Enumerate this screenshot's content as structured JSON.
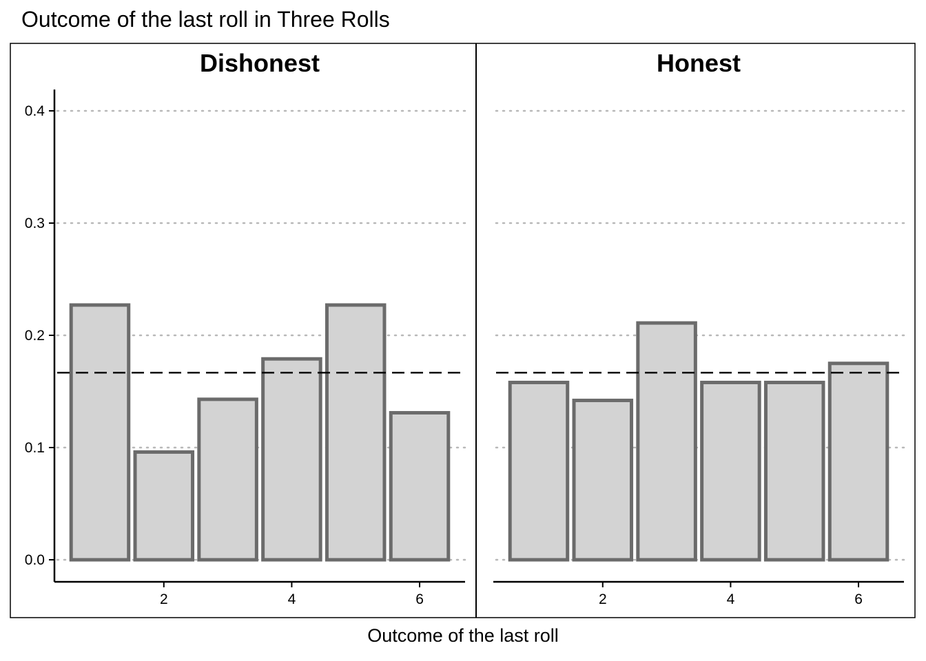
{
  "chart_data": {
    "type": "bar",
    "title": "Outcome of the last roll in Three Rolls",
    "xlabel": "Outcome of the last roll",
    "ylabel": "",
    "ylim": [
      0,
      0.42
    ],
    "xlim": [
      0.3,
      6.7
    ],
    "y_ticks": [
      0.0,
      0.1,
      0.2,
      0.3,
      0.4
    ],
    "y_tick_labels": [
      "0.0",
      "0.1",
      "0.2",
      "0.3",
      "0.4"
    ],
    "x_ticks": [
      2,
      4,
      6
    ],
    "x_tick_labels": [
      "2",
      "4",
      "6"
    ],
    "grid": "horizontal-dotted",
    "reference_line": 0.1667,
    "colors": {
      "bar_fill": "#d3d3d3",
      "bar_stroke": "#6b6b6b",
      "grid": "#b8b8b8",
      "reference": "#000000"
    },
    "facets": [
      {
        "label": "Dishonest",
        "categories": [
          1,
          2,
          3,
          4,
          5,
          6
        ],
        "values": [
          0.227,
          0.096,
          0.143,
          0.179,
          0.227,
          0.131
        ]
      },
      {
        "label": "Honest",
        "categories": [
          1,
          2,
          3,
          4,
          5,
          6
        ],
        "values": [
          0.158,
          0.142,
          0.211,
          0.158,
          0.158,
          0.175
        ]
      }
    ]
  }
}
